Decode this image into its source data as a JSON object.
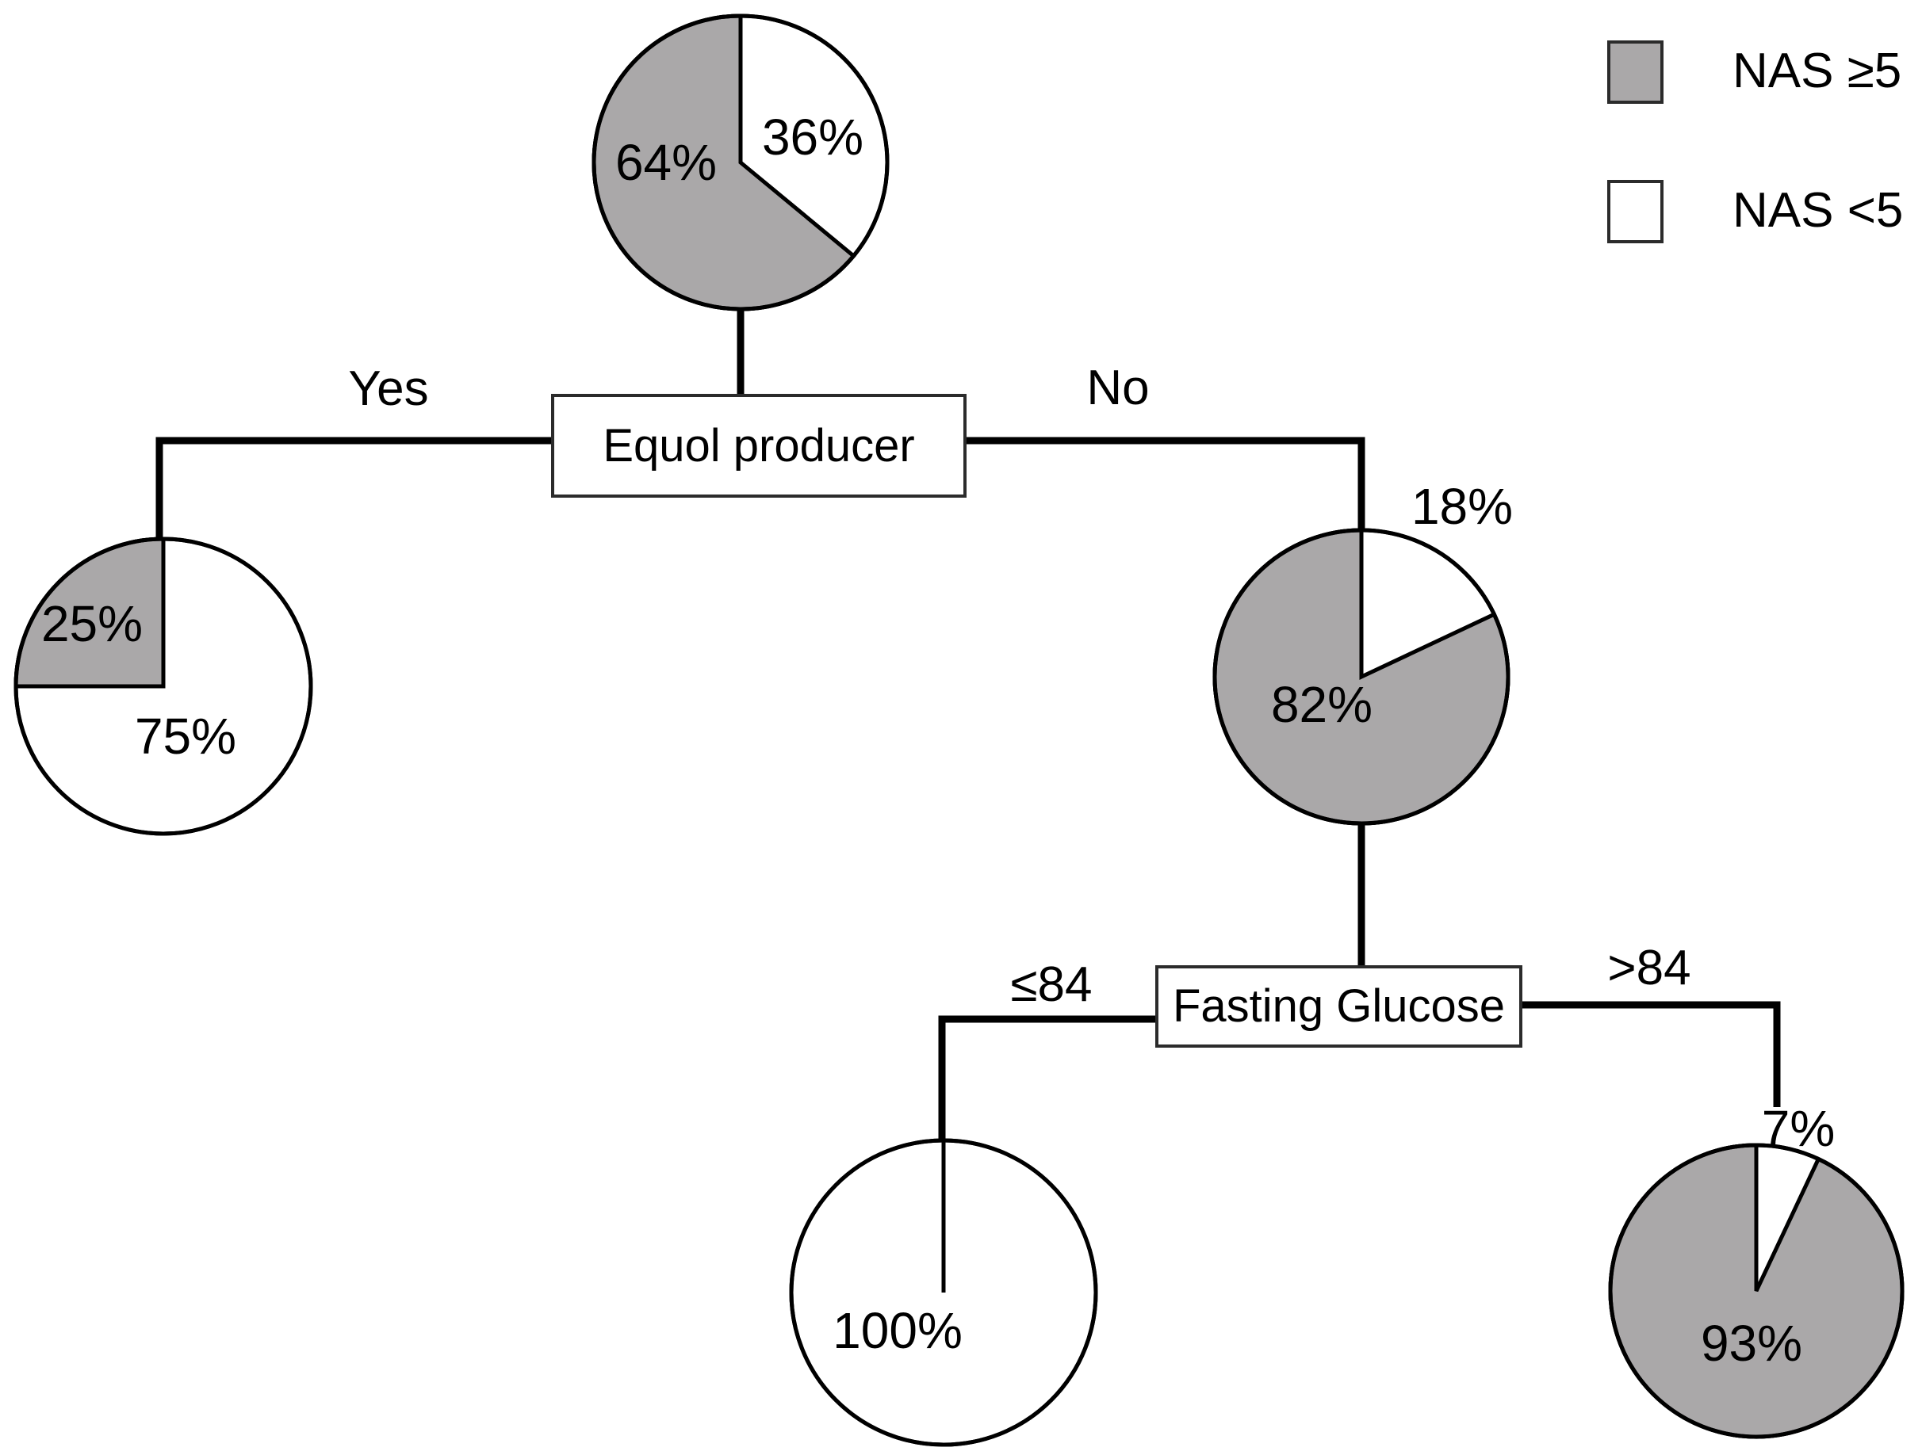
{
  "colors": {
    "filled": "#aaa8a9",
    "empty": "#ffffff",
    "line": "#000000"
  },
  "chart_data": {
    "type": "pie",
    "description": "Decision tree of pie charts: proportion of NAS >=5 vs NAS <5 at each node",
    "legend_position": "top-right",
    "legend": [
      {
        "label": "NAS ≥5",
        "swatch": "filled"
      },
      {
        "label": "NAS <5",
        "swatch": "empty"
      }
    ],
    "splits": [
      {
        "label": "Equol producer",
        "branches": [
          "Yes",
          "No"
        ]
      },
      {
        "label": "Fasting Glucose",
        "branches": [
          "≤84",
          ">84"
        ]
      }
    ],
    "nodes": {
      "root": {
        "filled_pct": 64,
        "empty_pct": 36,
        "filled_label": "64%",
        "empty_label": "36%"
      },
      "equol_yes": {
        "filled_pct": 25,
        "empty_pct": 75,
        "filled_label": "25%",
        "empty_label": "75%"
      },
      "equol_no": {
        "filled_pct": 82,
        "empty_pct": 18,
        "filled_label": "82%",
        "empty_label": "18%"
      },
      "glucose_le": {
        "filled_pct": 0,
        "empty_pct": 100,
        "empty_label": "100%"
      },
      "glucose_gt": {
        "filled_pct": 93,
        "empty_pct": 7,
        "filled_label": "93%",
        "empty_label": "7%"
      }
    }
  }
}
